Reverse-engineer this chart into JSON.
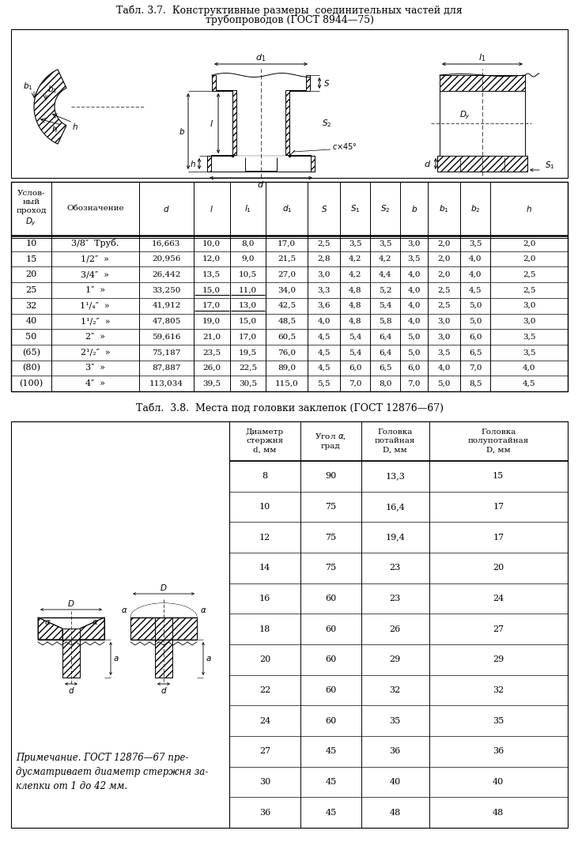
{
  "title1_line1": "Табл. 3.7.  Конструктивные размеры  соединительных частей для",
  "title1_line2": "трубопроводов (ГОСТ 8944—75)",
  "title2": "Табл.  3.8.  Места под головки заклепок (ГОСТ 12876—67)",
  "table1_rows": [
    [
      "10",
      "3/8″  Труб.",
      "16,663",
      "10,0",
      "8,0",
      "17,0",
      "2,5",
      "3,5",
      "3,5",
      "3,0",
      "2,0",
      "3,5",
      "2,0"
    ],
    [
      "15",
      "1/2″  »",
      "20,956",
      "12,0",
      "9,0",
      "21,5",
      "2,8",
      "4,2",
      "4,2",
      "3,5",
      "2,0",
      "4,0",
      "2,0"
    ],
    [
      "20",
      "3/4″  »",
      "26,442",
      "13,5",
      "10,5",
      "27,0",
      "3,0",
      "4,2",
      "4,4",
      "4,0",
      "2,0",
      "4,0",
      "2,5"
    ],
    [
      "25",
      "1″  »",
      "33,250",
      "15,0",
      "11,0",
      "34,0",
      "3,3",
      "4,8",
      "5,2",
      "4,0",
      "2,5",
      "4,5",
      "2,5"
    ],
    [
      "32",
      "1¹/₄″  »",
      "41,912",
      "17,0",
      "13,0",
      "42,5",
      "3,6",
      "4,8",
      "5,4",
      "4,0",
      "2,5",
      "5,0",
      "3,0"
    ],
    [
      "40",
      "1¹/₂″  »",
      "47,805",
      "19,0",
      "15,0",
      "48,5",
      "4,0",
      "4,8",
      "5,8",
      "4,0",
      "3,0",
      "5,0",
      "3,0"
    ],
    [
      "50",
      "2″  »",
      "59,616",
      "21,0",
      "17,0",
      "60,5",
      "4,5",
      "5,4",
      "6,4",
      "5,0",
      "3,0",
      "6,0",
      "3,5"
    ],
    [
      "(65)",
      "2¹/₂″  »",
      "75,187",
      "23,5",
      "19,5",
      "76,0",
      "4,5",
      "5,4",
      "6,4",
      "5,0",
      "3,5",
      "6,5",
      "3,5"
    ],
    [
      "(80)",
      "3″  »",
      "87,887",
      "26,0",
      "22,5",
      "89,0",
      "4,5",
      "6,0",
      "6,5",
      "6,0",
      "4,0",
      "7,0",
      "4,0"
    ],
    [
      "(100)",
      "4″  »",
      "113,034",
      "39,5",
      "30,5",
      "115,0",
      "5,5",
      "7,0",
      "8,0",
      "7,0",
      "5,0",
      "8,5",
      "4,5"
    ]
  ],
  "table2_rows": [
    [
      "8",
      "90",
      "13,3",
      "15"
    ],
    [
      "10",
      "75",
      "16,4",
      "17"
    ],
    [
      "12",
      "75",
      "19,4",
      "17"
    ],
    [
      "14",
      "75",
      "23",
      "20"
    ],
    [
      "16",
      "60",
      "23",
      "24"
    ],
    [
      "18",
      "60",
      "26",
      "27"
    ],
    [
      "20",
      "60",
      "29",
      "29"
    ],
    [
      "22",
      "60",
      "32",
      "32"
    ],
    [
      "24",
      "60",
      "35",
      "35"
    ],
    [
      "27",
      "45",
      "36",
      "36"
    ],
    [
      "30",
      "45",
      "40",
      "40"
    ],
    [
      "36",
      "45",
      "48",
      "48"
    ]
  ],
  "bg_color": "#ffffff"
}
